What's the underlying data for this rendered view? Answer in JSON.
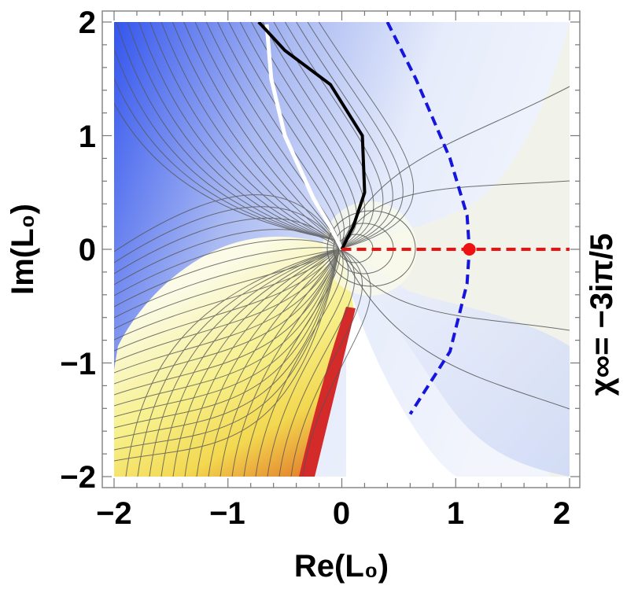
{
  "chart_data": {
    "type": "contour",
    "xlabel": "Re(L₀)",
    "ylabel": "Im(L₀)",
    "side_label": "χ∞=  −3iπ/5",
    "xlim": [
      -2,
      2
    ],
    "ylim": [
      -2,
      2
    ],
    "x_ticks": [
      {
        "value": -2,
        "label": "−2"
      },
      {
        "value": -1,
        "label": "−1"
      },
      {
        "value": 0,
        "label": "0"
      },
      {
        "value": 1,
        "label": "1"
      },
      {
        "value": 2,
        "label": "2"
      }
    ],
    "y_ticks": [
      {
        "value": 2,
        "label": "2"
      },
      {
        "value": 1,
        "label": "1"
      },
      {
        "value": 0,
        "label": "0"
      },
      {
        "value": -1,
        "label": "−1"
      },
      {
        "value": -2,
        "label": "−2"
      }
    ],
    "grid": false,
    "colors": {
      "blue": "#3355ee",
      "white": "#ffffff",
      "yellow": "#f5ee60",
      "orange": "#e08a30",
      "red": "#d42a2a",
      "contour": "#555555",
      "black_curve": "#000000",
      "blue_dashed": "#1515dd",
      "red_dashed": "#ee1111"
    },
    "curves": {
      "black": [
        [
          -0.73,
          2.0
        ],
        [
          -0.5,
          1.75
        ],
        [
          -0.1,
          1.45
        ],
        [
          0.18,
          1.0
        ],
        [
          0.2,
          0.5
        ],
        [
          0.1,
          0.2
        ],
        [
          0.0,
          0.0
        ]
      ],
      "white": [
        [
          -0.66,
          1.98
        ],
        [
          -0.62,
          1.5
        ],
        [
          -0.5,
          1.0
        ],
        [
          -0.25,
          0.45
        ],
        [
          -0.1,
          0.2
        ],
        [
          0.0,
          0.0
        ]
      ],
      "blue_dashed": [
        [
          0.4,
          2.0
        ],
        [
          0.65,
          1.5
        ],
        [
          0.95,
          0.8
        ],
        [
          1.1,
          0.3
        ],
        [
          1.12,
          0.0
        ],
        [
          1.1,
          -0.3
        ],
        [
          0.95,
          -0.9
        ],
        [
          0.6,
          -1.45
        ]
      ],
      "red_dashed": [
        [
          0.0,
          0.0
        ],
        [
          2.0,
          0.0
        ]
      ]
    },
    "marker": {
      "x": 1.12,
      "y": 0.0,
      "color": "#ee1111"
    }
  }
}
